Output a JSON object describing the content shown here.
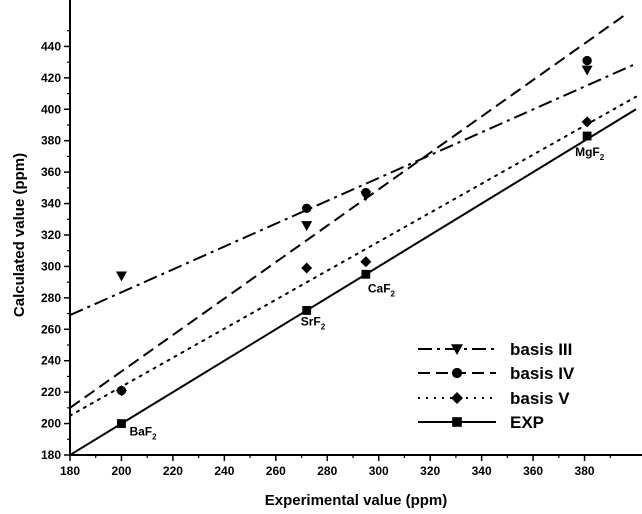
{
  "chart_data": {
    "type": "scatter",
    "xlabel": "Experimental value (ppm)",
    "ylabel": "Calculated value (ppm)",
    "xlim": [
      180,
      400
    ],
    "ylim": [
      180,
      460
    ],
    "x_ticks": [
      180,
      200,
      220,
      240,
      260,
      280,
      300,
      320,
      340,
      360,
      380
    ],
    "y_ticks": [
      180,
      200,
      220,
      240,
      260,
      280,
      300,
      320,
      340,
      360,
      380,
      400,
      420,
      440
    ],
    "grid": false,
    "legend_position": "bottom-right",
    "series": [
      {
        "name": "basis III",
        "marker": "triangle-down",
        "line": "dash-dot",
        "points": [
          [
            200,
            294
          ],
          [
            272,
            326
          ],
          [
            295,
            345
          ],
          [
            381,
            425
          ]
        ],
        "fit": [
          [
            180,
            269
          ],
          [
            400,
            429
          ]
        ]
      },
      {
        "name": "basis IV",
        "marker": "circle",
        "line": "dashed",
        "points": [
          [
            200,
            221
          ],
          [
            272,
            337
          ],
          [
            295,
            347
          ],
          [
            381,
            431
          ]
        ],
        "fit": [
          [
            180,
            210
          ],
          [
            400,
            465
          ]
        ]
      },
      {
        "name": "basis V",
        "marker": "diamond",
        "line": "dotted",
        "points": [
          [
            200,
            221
          ],
          [
            272,
            299
          ],
          [
            295,
            303
          ],
          [
            381,
            392
          ]
        ],
        "fit": [
          [
            180,
            205
          ],
          [
            400,
            408
          ]
        ]
      },
      {
        "name": "EXP",
        "marker": "square",
        "line": "solid",
        "points": [
          [
            200,
            200
          ],
          [
            272,
            272
          ],
          [
            295,
            295
          ],
          [
            381,
            383
          ]
        ],
        "fit": [
          [
            180,
            180
          ],
          [
            400,
            400
          ]
        ]
      }
    ],
    "point_labels": [
      {
        "base": "BaF",
        "sub": "2",
        "x": 200,
        "y": 200
      },
      {
        "base": "SrF",
        "sub": "2",
        "x": 272,
        "y": 272
      },
      {
        "base": "CaF",
        "sub": "2",
        "x": 295,
        "y": 295
      },
      {
        "base": "MgF",
        "sub": "2",
        "x": 381,
        "y": 383
      }
    ]
  }
}
